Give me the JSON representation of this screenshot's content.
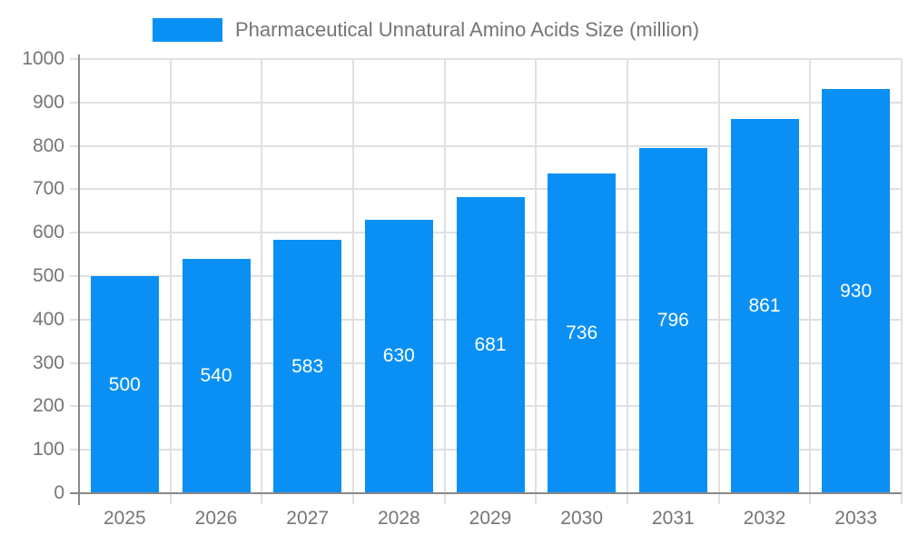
{
  "chart_data": {
    "type": "bar",
    "title": "Pharmaceutical Unnatural Amino Acids Size (million)",
    "categories": [
      "2025",
      "2026",
      "2027",
      "2028",
      "2029",
      "2030",
      "2031",
      "2032",
      "2033"
    ],
    "values": [
      500,
      540,
      583,
      630,
      681,
      736,
      796,
      861,
      930
    ],
    "xlabel": "",
    "ylabel": "",
    "ylim": [
      0,
      1000
    ],
    "ytick_step": 100,
    "grid": true,
    "legend_position": "top",
    "value_labels": "inside-center",
    "colors": {
      "bar": "#0a90f5",
      "axis": "#888888",
      "grid": "#e0e0e0",
      "tick_label": "#757575",
      "value_label": "#ffffff"
    }
  }
}
